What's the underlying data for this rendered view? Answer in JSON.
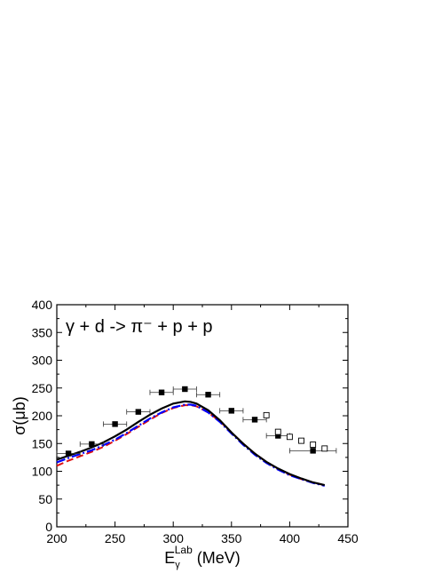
{
  "chart_data": {
    "type": "line",
    "xlabel_main": "E",
    "xlabel_sub": "γ",
    "xlabel_sup": "Lab",
    "xlabel_unit": " (MeV)",
    "ylabel": "σ(μb)",
    "annotation": "γ + d -> π⁻ + p + p",
    "xlim": [
      200,
      450
    ],
    "ylim": [
      0,
      400
    ],
    "x_ticks": [
      200,
      250,
      300,
      350,
      400,
      450
    ],
    "y_ticks": [
      0,
      50,
      100,
      150,
      200,
      250,
      300,
      350,
      400
    ],
    "grid": false,
    "legend": "none",
    "series": [
      {
        "style": "solid",
        "color": "#000000",
        "x": [
          200,
          210,
          220,
          230,
          240,
          250,
          260,
          270,
          280,
          290,
          300,
          310,
          315,
          320,
          330,
          340,
          350,
          360,
          370,
          380,
          390,
          400,
          410,
          420,
          430
        ],
        "y": [
          121,
          128,
          135,
          143,
          152,
          163,
          175,
          189,
          202,
          213,
          222,
          226,
          225,
          222,
          210,
          192,
          170,
          150,
          132,
          117,
          105,
          95,
          87,
          80,
          75
        ]
      },
      {
        "style": "dash-dot",
        "color": "#0000ff",
        "x": [
          200,
          210,
          220,
          230,
          240,
          250,
          260,
          270,
          280,
          290,
          300,
          310,
          315,
          320,
          330,
          340,
          350,
          360,
          370,
          380,
          390,
          400,
          410,
          420,
          430
        ],
        "y": [
          116,
          124,
          131,
          138,
          147,
          157,
          169,
          182,
          195,
          206,
          215,
          220,
          220,
          218,
          206,
          189,
          168,
          148,
          130,
          115,
          103,
          93,
          86,
          79,
          74
        ]
      },
      {
        "style": "dashed",
        "color": "#e01010",
        "x": [
          200,
          210,
          220,
          230,
          240,
          250,
          260,
          270,
          280,
          290,
          300,
          310,
          315,
          320,
          330,
          340,
          350,
          360,
          370,
          380,
          390,
          400,
          410,
          420,
          430
        ],
        "y": [
          110,
          119,
          127,
          135,
          144,
          155,
          167,
          180,
          193,
          205,
          214,
          219,
          219,
          217,
          206,
          190,
          170,
          150,
          132,
          117,
          104,
          94,
          86,
          80,
          75
        ]
      }
    ],
    "data_points_filled": [
      {
        "x": 210,
        "y": 132,
        "xerr": 10
      },
      {
        "x": 230,
        "y": 149,
        "xerr": 10
      },
      {
        "x": 250,
        "y": 185,
        "xerr": 10
      },
      {
        "x": 270,
        "y": 207,
        "xerr": 10
      },
      {
        "x": 290,
        "y": 242,
        "xerr": 10
      },
      {
        "x": 310,
        "y": 248,
        "xerr": 10
      },
      {
        "x": 330,
        "y": 238,
        "xerr": 10
      },
      {
        "x": 350,
        "y": 209,
        "xerr": 10
      },
      {
        "x": 370,
        "y": 193,
        "xerr": 10
      },
      {
        "x": 390,
        "y": 164,
        "xerr": 10
      },
      {
        "x": 420,
        "y": 137,
        "xerr": 20
      }
    ],
    "data_points_open": [
      {
        "x": 380,
        "y": 201
      },
      {
        "x": 390,
        "y": 171
      },
      {
        "x": 400,
        "y": 162
      },
      {
        "x": 410,
        "y": 155
      },
      {
        "x": 420,
        "y": 148
      },
      {
        "x": 430,
        "y": 141
      }
    ]
  }
}
